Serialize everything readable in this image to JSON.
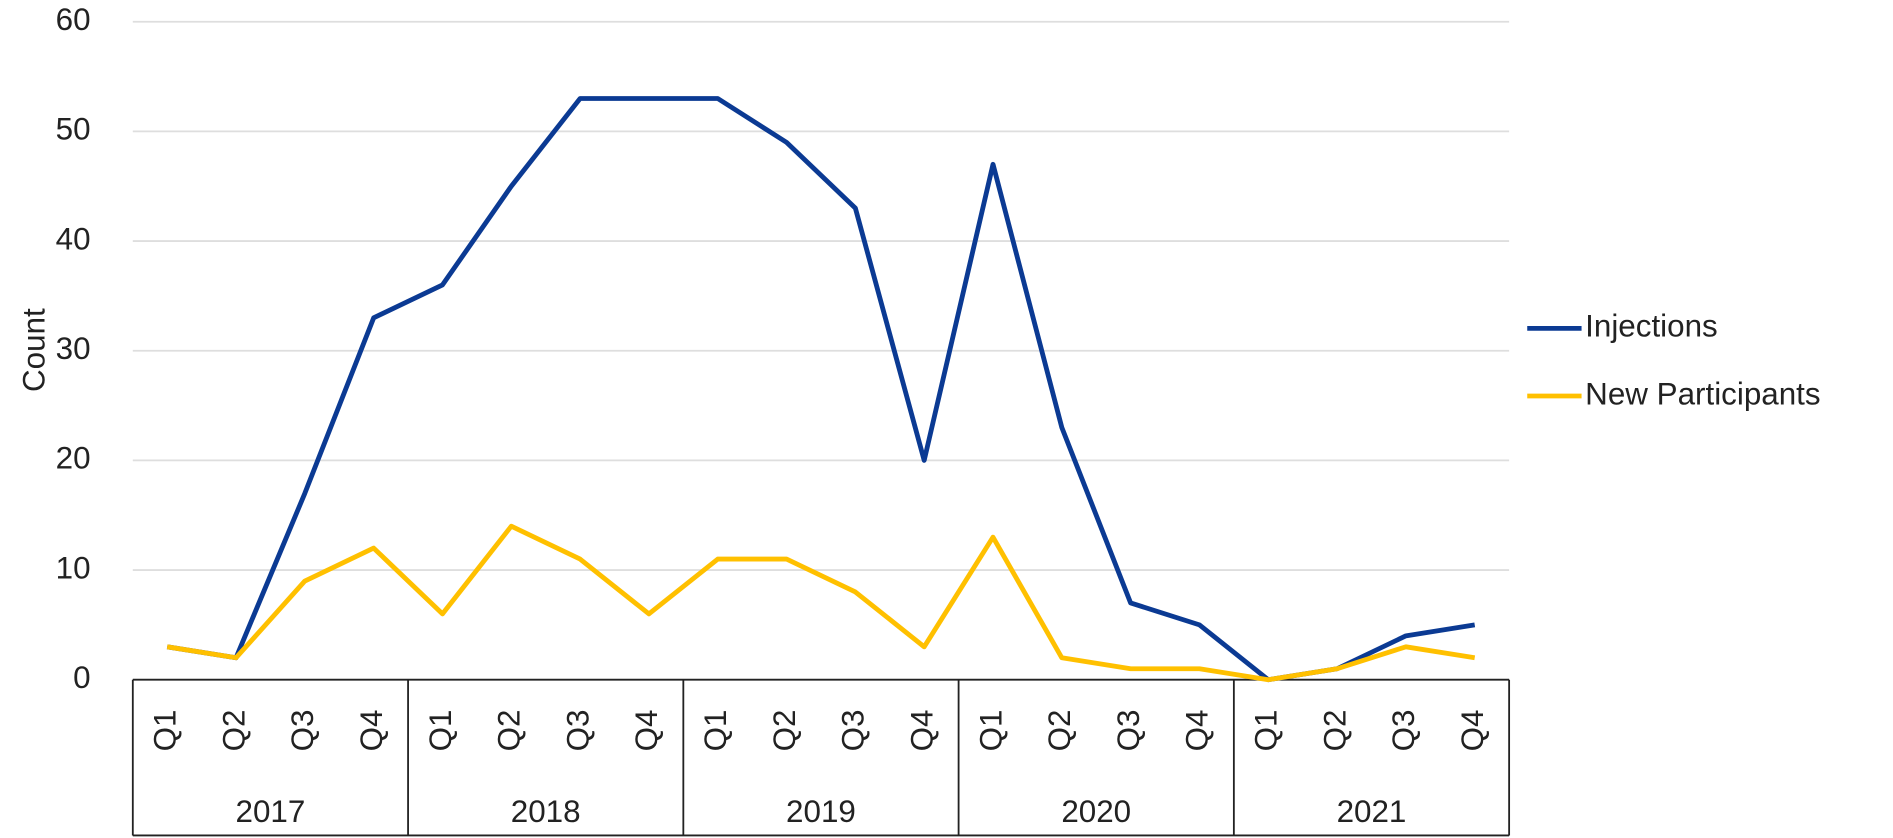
{
  "chart_data": {
    "type": "line",
    "y_label": "Count",
    "categories": [
      "Q1",
      "Q2",
      "Q3",
      "Q4",
      "Q1",
      "Q2",
      "Q3",
      "Q4",
      "Q1",
      "Q2",
      "Q3",
      "Q4",
      "Q1",
      "Q2",
      "Q3",
      "Q4",
      "Q1",
      "Q2",
      "Q3",
      "Q4"
    ],
    "category_groups": [
      "2017",
      "2018",
      "2019",
      "2020",
      "2021"
    ],
    "series": [
      {
        "name": "Injections",
        "color": "#0b3a93",
        "values": [
          3,
          2,
          17,
          33,
          36,
          45,
          53,
          53,
          53,
          49,
          43,
          20,
          47,
          23,
          7,
          5,
          0,
          1,
          4,
          5
        ]
      },
      {
        "name": "New Participants",
        "color": "#ffc000",
        "values": [
          3,
          2,
          9,
          12,
          6,
          14,
          11,
          6,
          11,
          11,
          8,
          3,
          13,
          2,
          1,
          1,
          0,
          1,
          3,
          2
        ]
      }
    ],
    "ylim": [
      0,
      60
    ],
    "yticks": [
      0,
      10,
      20,
      30,
      40,
      50,
      60
    ],
    "grid": true,
    "legend": "right"
  }
}
